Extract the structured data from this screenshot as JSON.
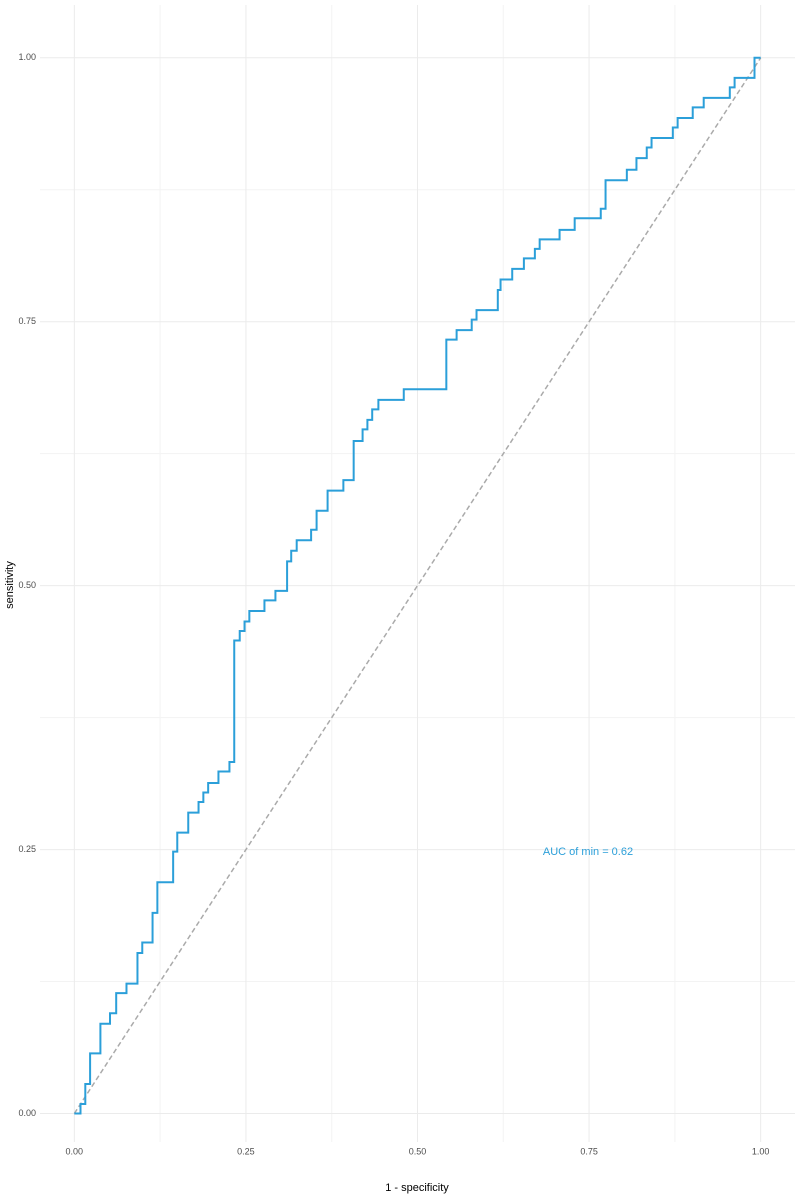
{
  "chart_data": {
    "type": "line",
    "x_label": "1 - specificity",
    "y_label": "sensitivity",
    "annotation": "AUC of min =  0.62",
    "grid": true,
    "xlim": [
      -0.05,
      1.05
    ],
    "ylim": [
      -0.027,
      1.05
    ],
    "xticks": [
      {
        "value": 0,
        "label": "0.00"
      },
      {
        "value": 0.25,
        "label": "0.25"
      },
      {
        "value": 0.5,
        "label": "0.50"
      },
      {
        "value": 0.75,
        "label": "0.75"
      },
      {
        "value": 1,
        "label": "1.00"
      }
    ],
    "yticks": [
      {
        "value": 0,
        "label": "0.00"
      },
      {
        "value": 0.25,
        "label": "0.25"
      },
      {
        "value": 0.5,
        "label": "0.50"
      },
      {
        "value": 0.75,
        "label": "0.75"
      },
      {
        "value": 1,
        "label": "1.00"
      }
    ],
    "diagonal": {
      "color": "#aaaaaa",
      "x": [
        0,
        1
      ],
      "values": [
        0,
        1
      ]
    },
    "series": [
      {
        "color": "#2b9fd9",
        "x": [
          0,
          0.009,
          0.009,
          0.016,
          0.016,
          0.023,
          0.023,
          0.038,
          0.038,
          0.052,
          0.052,
          0.061,
          0.061,
          0.076,
          0.076,
          0.092,
          0.092,
          0.099,
          0.099,
          0.114,
          0.114,
          0.121,
          0.121,
          0.144,
          0.144,
          0.15,
          0.15,
          0.166,
          0.166,
          0.181,
          0.181,
          0.188,
          0.188,
          0.195,
          0.195,
          0.21,
          0.21,
          0.226,
          0.226,
          0.233,
          0.233,
          0.241,
          0.241,
          0.248,
          0.248,
          0.255,
          0.255,
          0.277,
          0.277,
          0.293,
          0.293,
          0.31,
          0.31,
          0.316,
          0.316,
          0.324,
          0.324,
          0.345,
          0.345,
          0.353,
          0.353,
          0.369,
          0.369,
          0.392,
          0.392,
          0.407,
          0.407,
          0.42,
          0.42,
          0.427,
          0.427,
          0.434,
          0.434,
          0.443,
          0.443,
          0.48,
          0.48,
          0.542,
          0.542,
          0.557,
          0.557,
          0.579,
          0.579,
          0.586,
          0.586,
          0.617,
          0.617,
          0.621,
          0.621,
          0.638,
          0.638,
          0.655,
          0.655,
          0.671,
          0.671,
          0.678,
          0.678,
          0.707,
          0.707,
          0.729,
          0.729,
          0.767,
          0.767,
          0.774,
          0.774,
          0.805,
          0.805,
          0.819,
          0.819,
          0.834,
          0.834,
          0.841,
          0.841,
          0.872,
          0.872,
          0.879,
          0.879,
          0.901,
          0.901,
          0.917,
          0.917,
          0.955,
          0.955,
          0.962,
          0.962,
          0.991,
          0.991,
          1
        ],
        "values": [
          0,
          0,
          0.009,
          0.009,
          0.028,
          0.028,
          0.057,
          0.057,
          0.085,
          0.085,
          0.095,
          0.095,
          0.114,
          0.114,
          0.123,
          0.123,
          0.152,
          0.152,
          0.162,
          0.162,
          0.19,
          0.19,
          0.219,
          0.219,
          0.248,
          0.248,
          0.266,
          0.266,
          0.285,
          0.285,
          0.295,
          0.295,
          0.304,
          0.304,
          0.313,
          0.313,
          0.324,
          0.324,
          0.333,
          0.333,
          0.448,
          0.448,
          0.457,
          0.457,
          0.466,
          0.466,
          0.476,
          0.476,
          0.486,
          0.486,
          0.495,
          0.495,
          0.523,
          0.523,
          0.533,
          0.533,
          0.543,
          0.543,
          0.553,
          0.553,
          0.571,
          0.571,
          0.59,
          0.59,
          0.6,
          0.6,
          0.637,
          0.637,
          0.648,
          0.648,
          0.657,
          0.657,
          0.667,
          0.667,
          0.676,
          0.676,
          0.686,
          0.686,
          0.733,
          0.733,
          0.742,
          0.742,
          0.752,
          0.752,
          0.761,
          0.761,
          0.78,
          0.78,
          0.79,
          0.79,
          0.8,
          0.8,
          0.81,
          0.81,
          0.819,
          0.819,
          0.828,
          0.828,
          0.837,
          0.837,
          0.848,
          0.848,
          0.857,
          0.857,
          0.884,
          0.884,
          0.894,
          0.894,
          0.905,
          0.905,
          0.915,
          0.915,
          0.924,
          0.924,
          0.934,
          0.934,
          0.943,
          0.943,
          0.953,
          0.953,
          0.962,
          0.962,
          0.972,
          0.972,
          0.981,
          0.981,
          1,
          1
        ]
      }
    ]
  }
}
